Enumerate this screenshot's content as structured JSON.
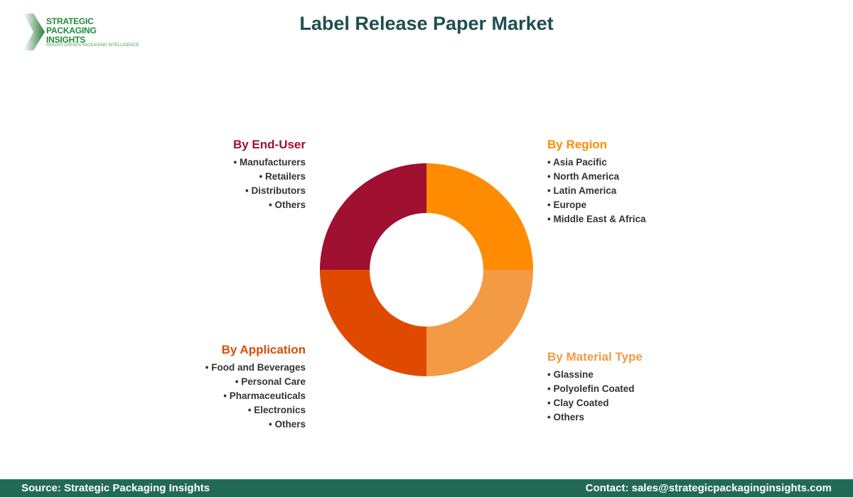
{
  "logo": {
    "line1": "STRATEGIC",
    "line2": "PACKAGING INSIGHTS",
    "tagline": "INSIGHT-DRIVEN PACKAGING INTELLIGENCE"
  },
  "title": "Label Release Paper Market",
  "colors": {
    "region": "#FF8C00",
    "material": "#F39A45",
    "application": "#E04A00",
    "end_user": "#A01030",
    "title": "#1F4E4F",
    "footer": "#226A57"
  },
  "segments": {
    "end_user": {
      "heading": "By End-User",
      "items": [
        "Manufacturers",
        "Retailers",
        "Distributors",
        "Others"
      ]
    },
    "region": {
      "heading": "By Region",
      "items": [
        "Asia Pacific",
        "North America",
        "Latin America",
        "Europe",
        "Middle East & Africa"
      ]
    },
    "application": {
      "heading": "By Application",
      "items": [
        "Food and Beverages",
        "Personal Care",
        "Pharmaceuticals",
        "Electronics",
        "Others"
      ]
    },
    "material": {
      "heading": "By Material Type",
      "items": [
        "Glassine",
        "Polyolefin Coated",
        "Clay Coated",
        "Others"
      ]
    }
  },
  "footer": {
    "source": "Source: Strategic Packaging Insights",
    "contact": "Contact: sales@strategicpackaginginsights.com"
  }
}
